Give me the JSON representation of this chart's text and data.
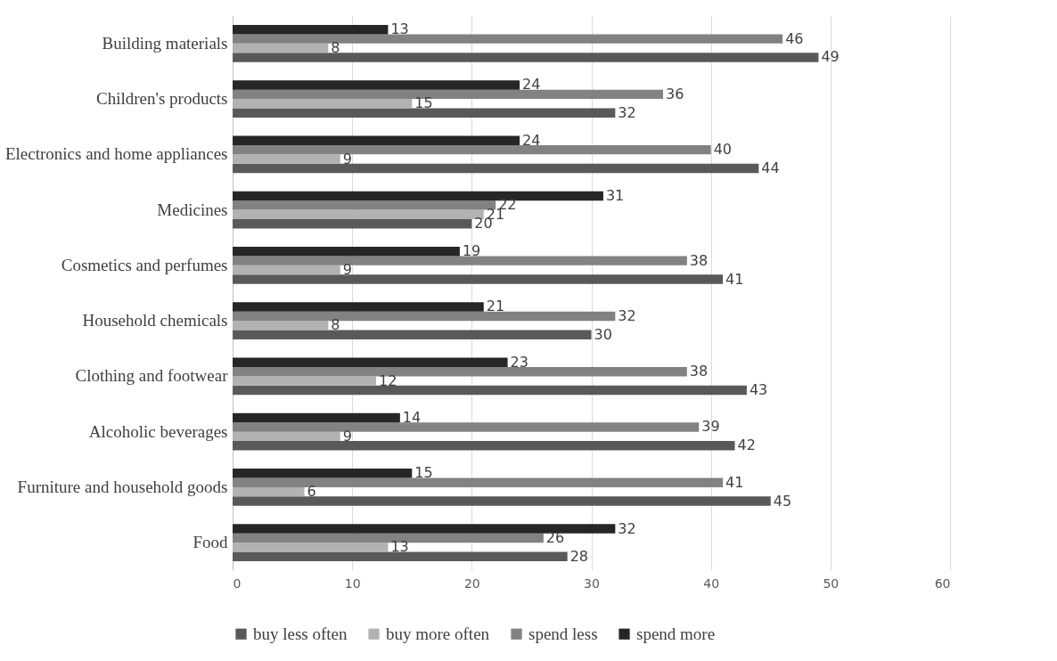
{
  "chart_data": {
    "type": "bar",
    "orientation": "horizontal",
    "categories": [
      "Building materials",
      "Children's products",
      "Electronics and home appliances",
      "Medicines",
      "Cosmetics and perfumes",
      "Household chemicals",
      "Clothing and footwear",
      "Alcoholic beverages",
      "Furniture and household goods",
      "Food"
    ],
    "series": [
      {
        "name": "buy less often",
        "color": "#595959",
        "values": [
          49,
          32,
          44,
          20,
          41,
          30,
          43,
          42,
          45,
          28
        ]
      },
      {
        "name": "buy more often",
        "color": "#b2b2b2",
        "values": [
          8,
          15,
          9,
          21,
          9,
          8,
          12,
          9,
          6,
          13
        ]
      },
      {
        "name": "spend less",
        "color": "#828282",
        "values": [
          46,
          36,
          40,
          22,
          38,
          32,
          38,
          39,
          41,
          26
        ]
      },
      {
        "name": "spend more",
        "color": "#262626",
        "values": [
          13,
          24,
          24,
          31,
          19,
          21,
          23,
          14,
          15,
          32
        ]
      }
    ],
    "xlim": [
      0,
      60
    ],
    "xticks": [
      0,
      10,
      20,
      30,
      40,
      50,
      60
    ],
    "grid": "x",
    "legend": "bottom",
    "data_labels": true
  }
}
